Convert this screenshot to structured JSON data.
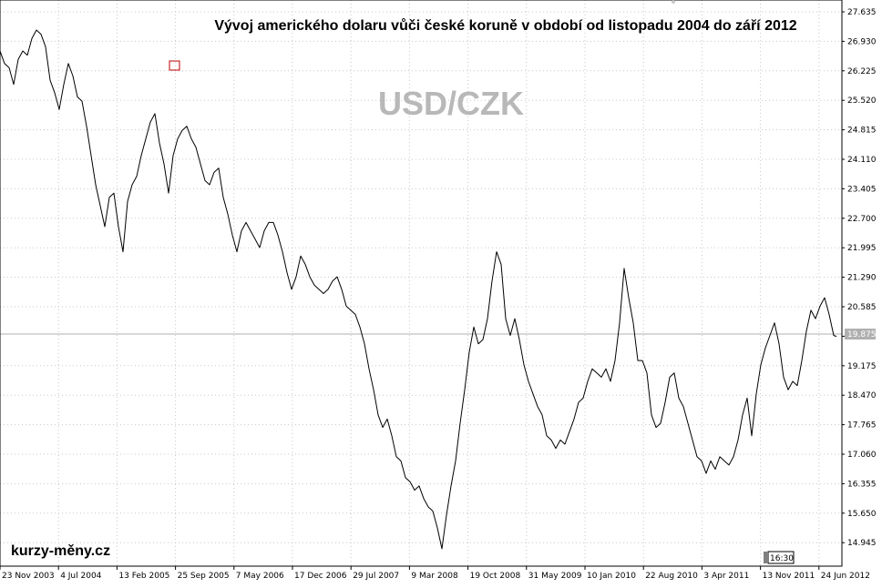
{
  "chart_data": {
    "type": "line",
    "title": "Vývoj amerického dolaru vůči české koruně v období od listopadu 2004 do září 2012",
    "symbol": "USD/CZK",
    "watermark": "kurzy-měny.cz",
    "time_badge": "16:30",
    "current_value": "19.875",
    "y_ticks": [
      "27.635",
      "26.930",
      "26.225",
      "25.520",
      "24.815",
      "24.110",
      "23.405",
      "22.700",
      "21.995",
      "21.290",
      "20.585",
      "19.875",
      "19.175",
      "18.470",
      "17.765",
      "17.060",
      "16.355",
      "15.650",
      "14.945"
    ],
    "x_ticks": [
      "23 Nov 2003",
      "4 Jul 2004",
      "13 Feb 2005",
      "25 Sep 2005",
      "7 May 2006",
      "17 Dec 2006",
      "29 Jul 2007",
      "9 Mar 2008",
      "19 Oct 2008",
      "31 May 2009",
      "10 Jan 2010",
      "22 Aug 2010",
      "3 Apr 2011",
      "13 Nov 2011",
      "24 Jun 2012"
    ],
    "ylim": [
      14.5,
      27.9
    ],
    "grid": true,
    "series": [
      {
        "values": [
          [
            0,
            26.7
          ],
          [
            5,
            26.4
          ],
          [
            10,
            26.3
          ],
          [
            15,
            25.9
          ],
          [
            20,
            26.5
          ],
          [
            25,
            26.7
          ],
          [
            30,
            26.6
          ],
          [
            35,
            27.0
          ],
          [
            40,
            27.2
          ],
          [
            45,
            27.1
          ],
          [
            50,
            26.8
          ],
          [
            55,
            26.0
          ],
          [
            60,
            25.7
          ],
          [
            65,
            25.3
          ],
          [
            70,
            25.9
          ],
          [
            75,
            26.4
          ],
          [
            80,
            26.1
          ],
          [
            85,
            25.6
          ],
          [
            90,
            25.5
          ],
          [
            95,
            24.9
          ],
          [
            100,
            24.2
          ],
          [
            105,
            23.5
          ],
          [
            110,
            23.0
          ],
          [
            115,
            22.5
          ],
          [
            120,
            23.2
          ],
          [
            125,
            23.3
          ],
          [
            130,
            22.5
          ],
          [
            135,
            21.9
          ],
          [
            140,
            23.1
          ],
          [
            145,
            23.5
          ],
          [
            150,
            23.7
          ],
          [
            155,
            24.2
          ],
          [
            160,
            24.6
          ],
          [
            165,
            25.0
          ],
          [
            170,
            25.2
          ],
          [
            175,
            24.5
          ],
          [
            180,
            24.0
          ],
          [
            185,
            23.3
          ],
          [
            190,
            24.2
          ],
          [
            195,
            24.6
          ],
          [
            200,
            24.8
          ],
          [
            205,
            24.9
          ],
          [
            210,
            24.6
          ],
          [
            215,
            24.4
          ],
          [
            220,
            24.0
          ],
          [
            225,
            23.6
          ],
          [
            230,
            23.5
          ],
          [
            235,
            23.8
          ],
          [
            240,
            23.9
          ],
          [
            245,
            23.2
          ],
          [
            250,
            22.8
          ],
          [
            255,
            22.3
          ],
          [
            260,
            21.9
          ],
          [
            265,
            22.4
          ],
          [
            270,
            22.6
          ],
          [
            275,
            22.4
          ],
          [
            280,
            22.2
          ],
          [
            285,
            22.0
          ],
          [
            290,
            22.4
          ],
          [
            295,
            22.6
          ],
          [
            300,
            22.6
          ],
          [
            305,
            22.3
          ],
          [
            310,
            21.9
          ],
          [
            315,
            21.4
          ],
          [
            320,
            21.0
          ],
          [
            325,
            21.3
          ],
          [
            330,
            21.8
          ],
          [
            335,
            21.6
          ],
          [
            340,
            21.3
          ],
          [
            345,
            21.1
          ],
          [
            350,
            21.0
          ],
          [
            355,
            20.9
          ],
          [
            360,
            21.0
          ],
          [
            365,
            21.2
          ],
          [
            370,
            21.3
          ],
          [
            375,
            21.0
          ],
          [
            380,
            20.6
          ],
          [
            385,
            20.5
          ],
          [
            390,
            20.4
          ],
          [
            395,
            20.1
          ],
          [
            400,
            19.7
          ],
          [
            405,
            19.1
          ],
          [
            410,
            18.6
          ],
          [
            415,
            18.0
          ],
          [
            420,
            17.7
          ],
          [
            425,
            17.9
          ],
          [
            430,
            17.5
          ],
          [
            435,
            17.0
          ],
          [
            440,
            16.9
          ],
          [
            445,
            16.5
          ],
          [
            450,
            16.4
          ],
          [
            455,
            16.2
          ],
          [
            460,
            16.3
          ],
          [
            465,
            16.0
          ],
          [
            470,
            15.8
          ],
          [
            475,
            15.7
          ],
          [
            480,
            15.3
          ],
          [
            485,
            14.8
          ],
          [
            490,
            15.6
          ],
          [
            495,
            16.3
          ],
          [
            500,
            16.9
          ],
          [
            505,
            17.8
          ],
          [
            510,
            18.6
          ],
          [
            515,
            19.5
          ],
          [
            520,
            20.1
          ],
          [
            525,
            19.7
          ],
          [
            530,
            19.8
          ],
          [
            535,
            20.3
          ],
          [
            540,
            21.2
          ],
          [
            545,
            21.9
          ],
          [
            550,
            21.6
          ],
          [
            555,
            20.3
          ],
          [
            560,
            19.9
          ],
          [
            565,
            20.3
          ],
          [
            570,
            19.8
          ],
          [
            575,
            19.2
          ],
          [
            580,
            18.8
          ],
          [
            585,
            18.5
          ],
          [
            590,
            18.2
          ],
          [
            595,
            18.0
          ],
          [
            600,
            17.5
          ],
          [
            605,
            17.4
          ],
          [
            610,
            17.2
          ],
          [
            615,
            17.4
          ],
          [
            620,
            17.3
          ],
          [
            625,
            17.6
          ],
          [
            630,
            17.9
          ],
          [
            635,
            18.3
          ],
          [
            640,
            18.4
          ],
          [
            645,
            18.8
          ],
          [
            650,
            19.1
          ],
          [
            655,
            19.0
          ],
          [
            660,
            18.9
          ],
          [
            665,
            19.1
          ],
          [
            670,
            18.8
          ],
          [
            675,
            19.3
          ],
          [
            680,
            20.2
          ],
          [
            685,
            21.5
          ],
          [
            690,
            20.8
          ],
          [
            695,
            20.2
          ],
          [
            700,
            19.3
          ],
          [
            705,
            19.3
          ],
          [
            710,
            19.0
          ],
          [
            715,
            18.0
          ],
          [
            720,
            17.7
          ],
          [
            725,
            17.8
          ],
          [
            730,
            18.3
          ],
          [
            735,
            18.9
          ],
          [
            740,
            19.0
          ],
          [
            745,
            18.4
          ],
          [
            750,
            18.2
          ],
          [
            755,
            17.8
          ],
          [
            760,
            17.4
          ],
          [
            765,
            17.0
          ],
          [
            770,
            16.9
          ],
          [
            775,
            16.6
          ],
          [
            780,
            16.9
          ],
          [
            785,
            16.7
          ],
          [
            790,
            17.0
          ],
          [
            795,
            16.9
          ],
          [
            800,
            16.8
          ],
          [
            805,
            17.0
          ],
          [
            810,
            17.4
          ],
          [
            815,
            18.0
          ],
          [
            820,
            18.4
          ],
          [
            825,
            17.5
          ],
          [
            830,
            18.5
          ],
          [
            835,
            19.2
          ],
          [
            840,
            19.6
          ],
          [
            845,
            19.9
          ],
          [
            850,
            20.2
          ],
          [
            855,
            19.7
          ],
          [
            860,
            18.9
          ],
          [
            865,
            18.6
          ],
          [
            870,
            18.8
          ],
          [
            875,
            18.7
          ],
          [
            880,
            19.3
          ],
          [
            885,
            20.0
          ],
          [
            890,
            20.5
          ],
          [
            895,
            20.3
          ],
          [
            900,
            20.6
          ],
          [
            905,
            20.8
          ],
          [
            910,
            20.4
          ],
          [
            915,
            19.9
          ],
          [
            918,
            19.875
          ]
        ]
      }
    ]
  }
}
